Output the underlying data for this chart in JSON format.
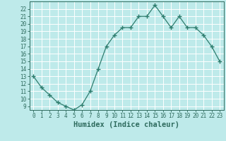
{
  "xlabel": "Humidex (Indice chaleur)",
  "x": [
    0,
    1,
    2,
    3,
    4,
    5,
    6,
    7,
    8,
    9,
    10,
    11,
    12,
    13,
    14,
    15,
    16,
    17,
    18,
    19,
    20,
    21,
    22,
    23
  ],
  "y": [
    13,
    11.5,
    10.5,
    9.5,
    9.0,
    8.5,
    9.2,
    11.0,
    14.0,
    17.0,
    18.5,
    19.5,
    19.5,
    21.0,
    21.0,
    22.5,
    21.0,
    19.5,
    21.0,
    19.5,
    19.5,
    18.5,
    17.0,
    15.0
  ],
  "line_color": "#2e7d6e",
  "marker": "+",
  "marker_size": 4,
  "bg_color": "#beeaea",
  "grid_color": "#ffffff",
  "ylim": [
    8.5,
    23.0
  ],
  "xlim": [
    -0.5,
    23.5
  ],
  "yticks": [
    9,
    10,
    11,
    12,
    13,
    14,
    15,
    16,
    17,
    18,
    19,
    20,
    21,
    22
  ],
  "xticks": [
    0,
    1,
    2,
    3,
    4,
    5,
    6,
    7,
    8,
    9,
    10,
    11,
    12,
    13,
    14,
    15,
    16,
    17,
    18,
    19,
    20,
    21,
    22,
    23
  ],
  "tick_fontsize": 5.5,
  "xlabel_fontsize": 7.5,
  "axis_color": "#2e6b5e"
}
